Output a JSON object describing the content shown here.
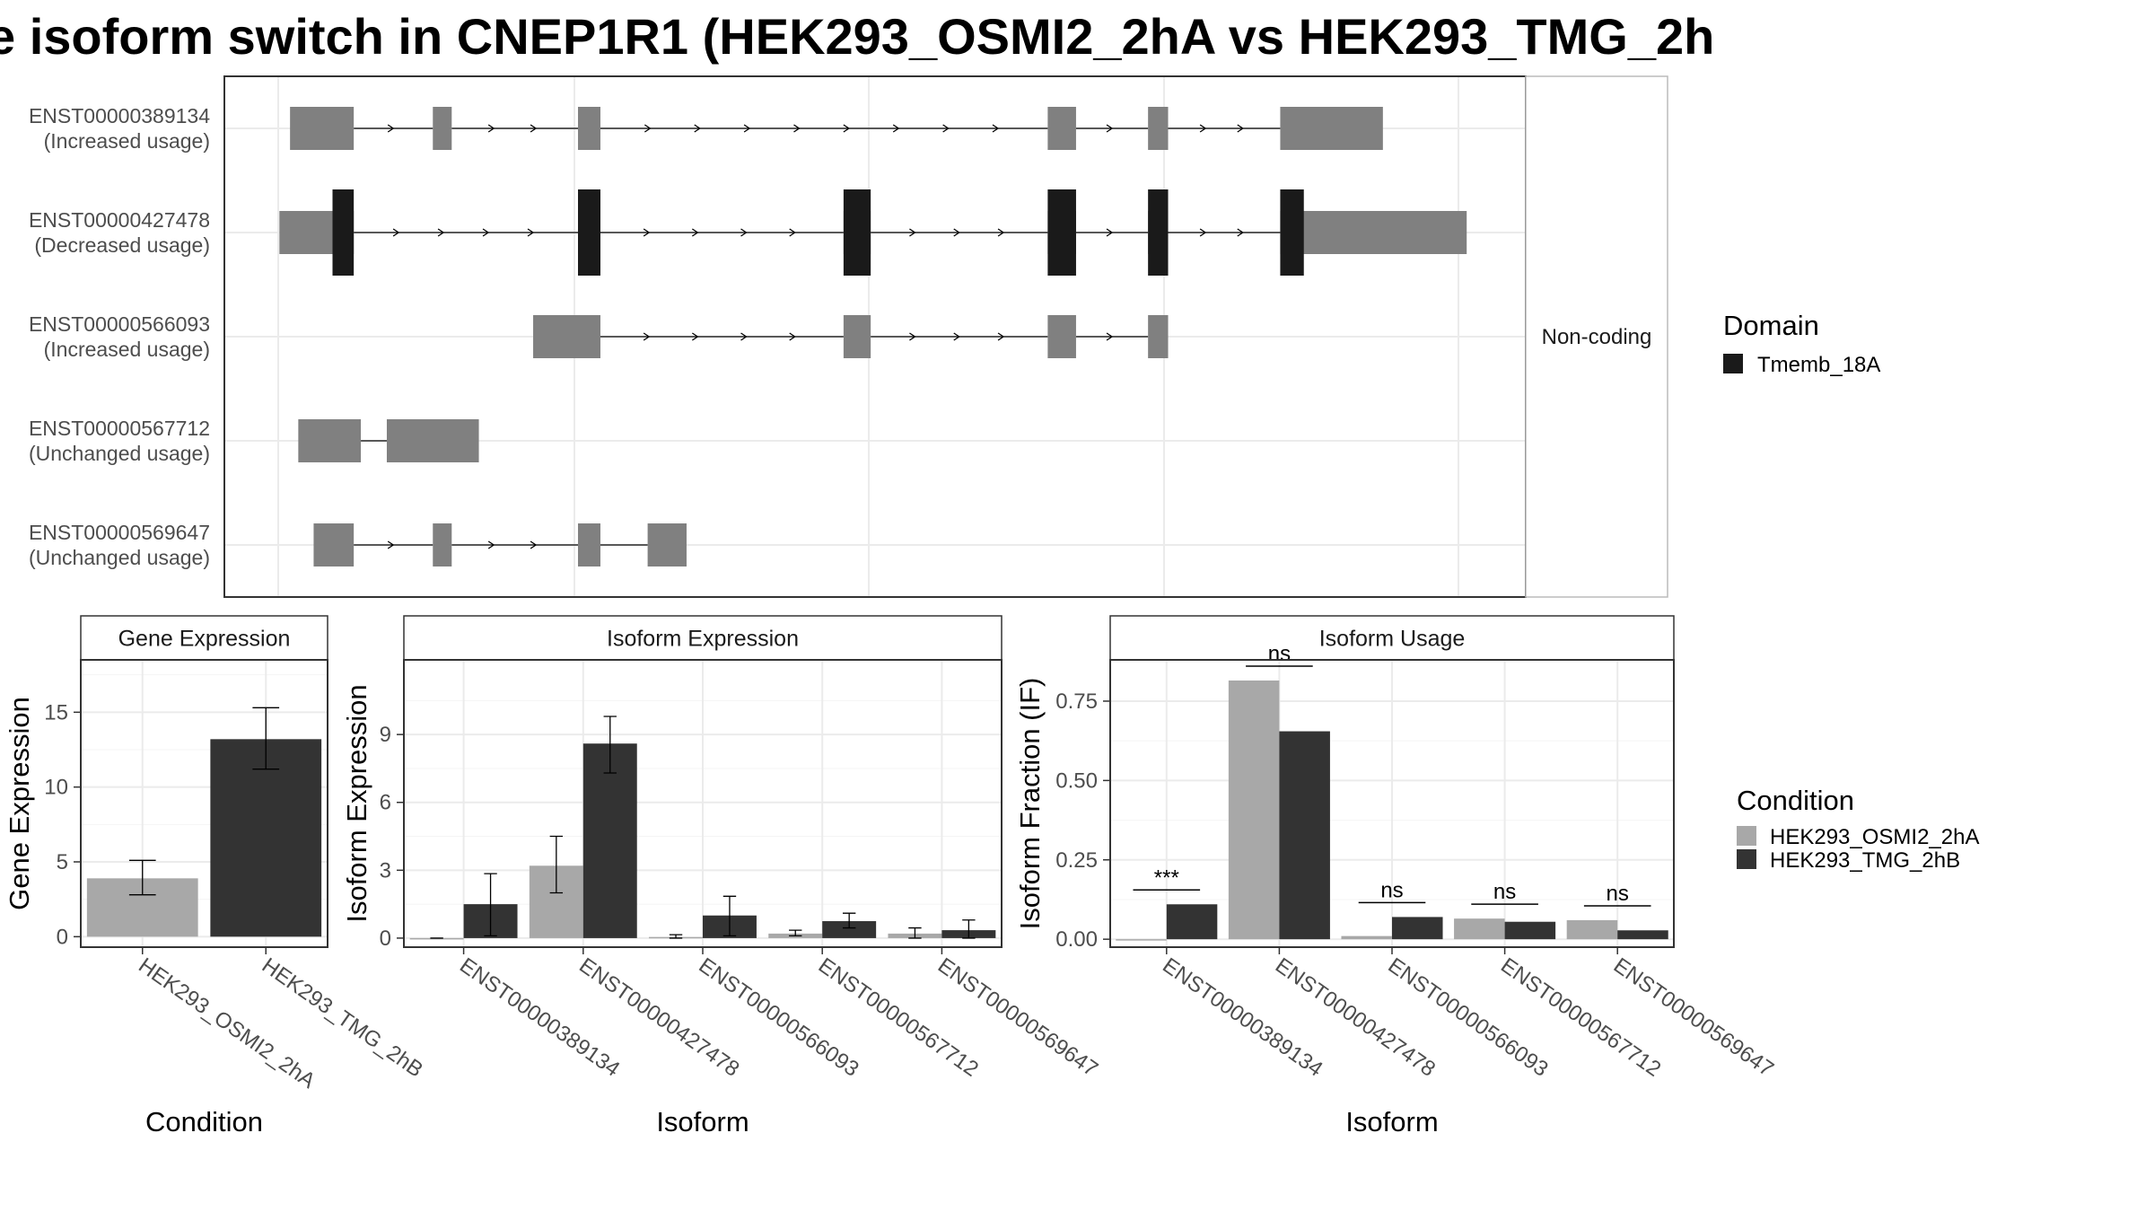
{
  "title": "e isoform switch in CNEP1R1 (HEK293_OSMI2_2hA vs HEK293_TMG_2h",
  "colors": {
    "osmi": "#a8a8a8",
    "tmg": "#333333",
    "domain": "#1a1a1a",
    "noncoding": "#808080",
    "grid": "#ebebeb"
  },
  "chart_data": [
    {
      "panel": "isoform_structure",
      "type": "other",
      "strip_label": "Non-coding",
      "legend": {
        "title": "Domain",
        "items": [
          "Tmemb_18A"
        ]
      },
      "isoforms": [
        {
          "id": "ENST00000389134",
          "usage": "(Increased usage)",
          "exons": [
            [
              0.01,
              0.064
            ],
            [
              0.131,
              0.147
            ],
            [
              0.254,
              0.273
            ],
            [
              0.652,
              0.676
            ],
            [
              0.737,
              0.754
            ],
            [
              0.849,
              0.936
            ]
          ],
          "coding": []
        },
        {
          "id": "ENST00000427478",
          "usage": "(Decreased usage)",
          "exons": [
            [
              0.001,
              0.064
            ],
            [
              0.254,
              0.273
            ],
            [
              0.479,
              0.502
            ],
            [
              0.652,
              0.676
            ],
            [
              0.737,
              0.754
            ],
            [
              0.849,
              1.007
            ]
          ],
          "coding": [
            [
              0.046,
              0.064
            ],
            [
              0.254,
              0.273
            ],
            [
              0.479,
              0.502
            ],
            [
              0.652,
              0.676
            ],
            [
              0.737,
              0.754
            ],
            [
              0.849,
              0.869
            ]
          ]
        },
        {
          "id": "ENST00000566093",
          "usage": "(Increased usage)",
          "exons": [
            [
              0.216,
              0.273
            ],
            [
              0.479,
              0.502
            ],
            [
              0.652,
              0.676
            ],
            [
              0.737,
              0.754
            ]
          ],
          "coding": []
        },
        {
          "id": "ENST00000567712",
          "usage": "(Unchanged usage)",
          "exons": [
            [
              0.017,
              0.07
            ],
            [
              0.092,
              0.17
            ]
          ],
          "coding": []
        },
        {
          "id": "ENST00000569647",
          "usage": "(Unchanged usage)",
          "exons": [
            [
              0.03,
              0.064
            ],
            [
              0.131,
              0.147
            ],
            [
              0.254,
              0.273
            ],
            [
              0.313,
              0.346
            ]
          ],
          "coding": []
        }
      ]
    },
    {
      "panel": "gene_expression",
      "type": "bar",
      "strip_label": "Gene Expression",
      "xlabel": "Condition",
      "ylabel": "Gene Expression",
      "ylim": [
        -0.7,
        18.5
      ],
      "yticks": [
        0,
        5,
        10,
        15
      ],
      "categories": [
        "HEK293_OSMI2_2hA",
        "HEK293_TMG_2hB"
      ],
      "values": [
        3.9,
        13.2
      ],
      "errors": [
        [
          2.8,
          5.1
        ],
        [
          11.2,
          15.3
        ]
      ]
    },
    {
      "panel": "isoform_expression",
      "type": "bar",
      "strip_label": "Isoform Expression",
      "xlabel": "Isoform",
      "ylabel": "Isoform Expression",
      "ylim": [
        -0.4,
        12.3
      ],
      "yticks": [
        0,
        3,
        6,
        9
      ],
      "categories": [
        "ENST00000389134",
        "ENST00000427478",
        "ENST00000566093",
        "ENST00000567712",
        "ENST00000569647"
      ],
      "series": [
        {
          "name": "HEK293_OSMI2_2hA",
          "values": [
            0.0,
            3.2,
            0.05,
            0.2,
            0.2
          ],
          "errors": [
            [
              0,
              0
            ],
            [
              2.0,
              4.5
            ],
            [
              0.0,
              0.15
            ],
            [
              0.1,
              0.35
            ],
            [
              0.0,
              0.45
            ]
          ]
        },
        {
          "name": "HEK293_TMG_2hB",
          "values": [
            1.5,
            8.6,
            1.0,
            0.75,
            0.35
          ],
          "errors": [
            [
              0.1,
              2.85
            ],
            [
              7.3,
              9.8
            ],
            [
              0.1,
              1.85
            ],
            [
              0.45,
              1.1
            ],
            [
              0.0,
              0.8
            ]
          ]
        }
      ]
    },
    {
      "panel": "isoform_usage",
      "type": "bar",
      "strip_label": "Isoform Usage",
      "xlabel": "Isoform",
      "ylabel": "Isoform Fraction (IF)",
      "ylim": [
        -0.025,
        0.88
      ],
      "yticks": [
        0.0,
        0.25,
        0.5,
        0.75
      ],
      "ytick_labels": [
        "0.00",
        "0.25",
        "0.50",
        "0.75"
      ],
      "categories": [
        "ENST00000389134",
        "ENST00000427478",
        "ENST00000566093",
        "ENST00000567712",
        "ENST00000569647"
      ],
      "series": [
        {
          "name": "HEK293_OSMI2_2hA",
          "values": [
            0.0,
            0.815,
            0.01,
            0.065,
            0.06
          ]
        },
        {
          "name": "HEK293_TMG_2hB",
          "values": [
            0.11,
            0.655,
            0.07,
            0.055,
            0.028
          ]
        }
      ],
      "significance": [
        "***",
        "ns",
        "ns",
        "ns",
        "ns"
      ],
      "legend": {
        "title": "Condition",
        "items": [
          "HEK293_OSMI2_2hA",
          "HEK293_TMG_2hB"
        ]
      }
    }
  ]
}
